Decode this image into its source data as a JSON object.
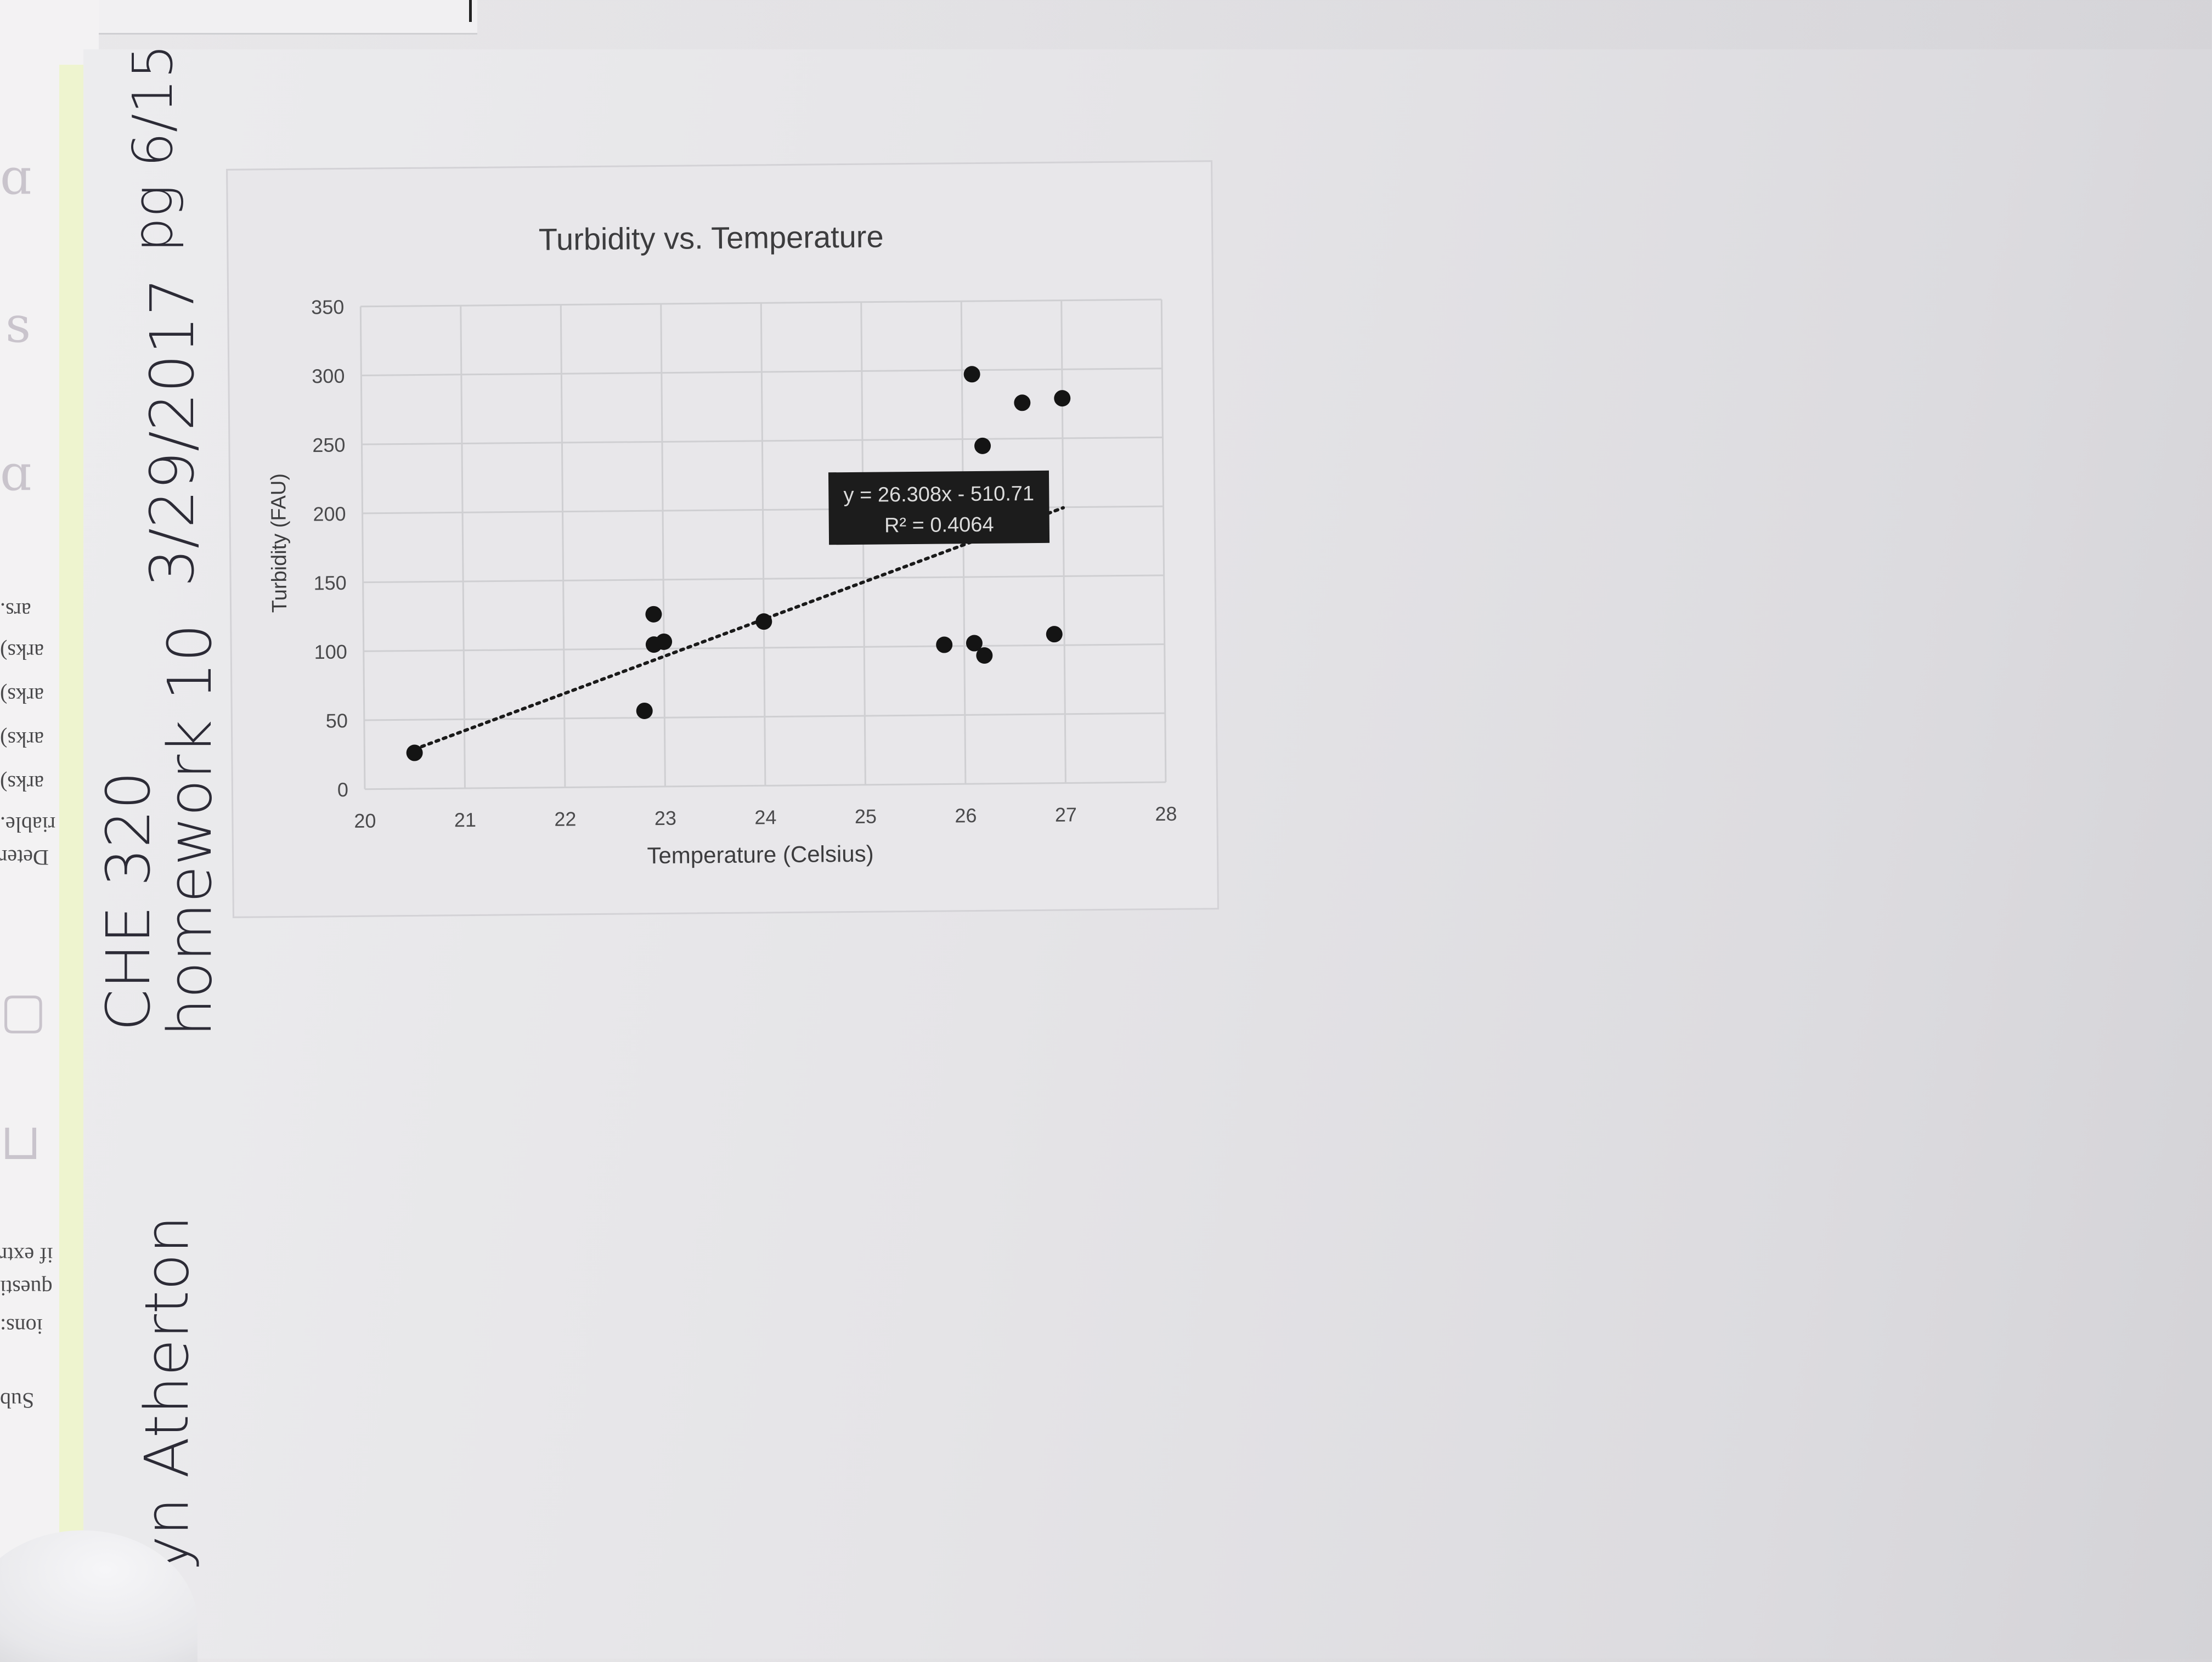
{
  "handwritten": {
    "name": "ryn Atherton",
    "course": "CHE 320",
    "assignment": "homework 10",
    "date": "3/29/2017",
    "page": "pg 6/15"
  },
  "background_page": {
    "lines": [
      "ars.",
      "arks)",
      "arks)",
      "arks)",
      "arks)",
      "riable.",
      "Deter",
      "if extr",
      "questi",
      "ions:",
      "Sub"
    ]
  },
  "chart_data": {
    "type": "scatter",
    "title": "Turbidity vs. Temperature",
    "xlabel": "Temperature (Celsius)",
    "ylabel": "Turbidity (FAU)",
    "xlim": [
      20,
      28
    ],
    "ylim": [
      0,
      350
    ],
    "xticks": [
      "20",
      "21",
      "22",
      "23",
      "24",
      "25",
      "26",
      "27",
      "28"
    ],
    "yticks": [
      "0",
      "50",
      "100",
      "150",
      "200",
      "250",
      "300",
      "350"
    ],
    "grid": true,
    "series": [
      {
        "points": [
          [
            20.5,
            26
          ],
          [
            22.8,
            55
          ],
          [
            22.9,
            125
          ],
          [
            22.9,
            103
          ],
          [
            23.0,
            105
          ],
          [
            24.0,
            119
          ],
          [
            25.8,
            101
          ],
          [
            26.1,
            297
          ],
          [
            26.1,
            102
          ],
          [
            26.2,
            245
          ],
          [
            26.2,
            93
          ],
          [
            26.6,
            276
          ],
          [
            26.9,
            108
          ],
          [
            27.0,
            279
          ]
        ]
      }
    ],
    "trendline": {
      "slope": 26.308,
      "intercept": -510.71,
      "x_range": [
        20.5,
        27.0
      ],
      "equation": "y = 26.308x - 510.71",
      "r_squared": "R² = 0.4064"
    },
    "colors": {
      "marker": "#141414",
      "label_box": "#1c1c1c",
      "grid": "#cfcfd2"
    }
  }
}
